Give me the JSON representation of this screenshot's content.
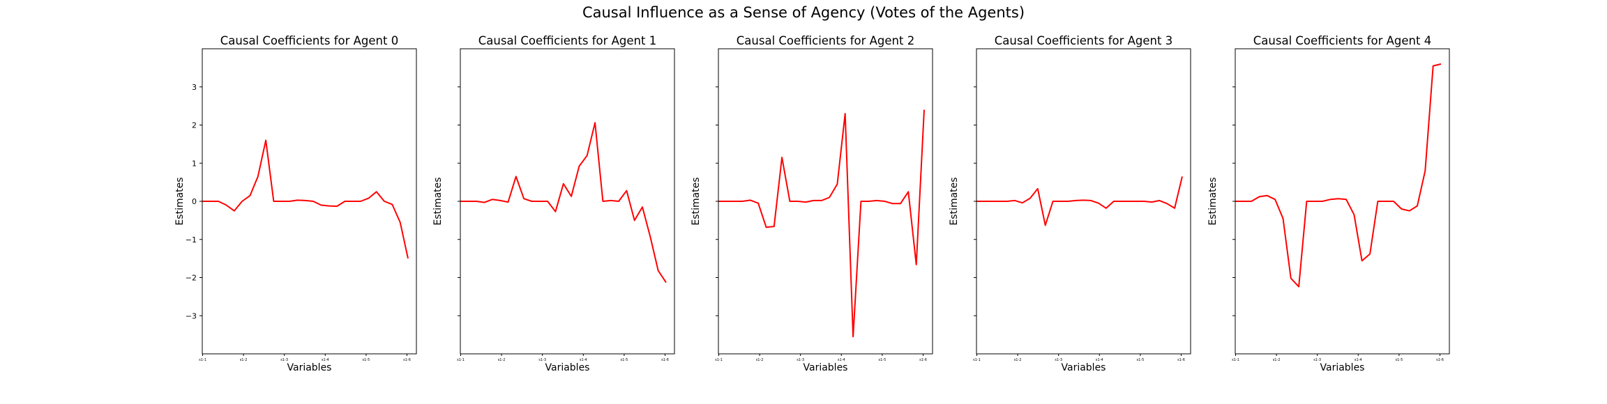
{
  "suptitle": "Causal Influence as a Sense of Agency (Votes of the Agents)",
  "chart_data": [
    {
      "type": "line",
      "title": "Causal Coefficients for Agent 0",
      "xlabel": "Variables",
      "ylabel": "Estimates",
      "ylim": [
        -4,
        4
      ],
      "yticks": [
        -3,
        -2,
        -1,
        0,
        1,
        2,
        3
      ],
      "xticks": [
        "s1-1",
        "s1-2",
        "s1-3",
        "s1-4",
        "s1-5",
        "s1-6"
      ],
      "line_color": "#ff0000",
      "series": [
        {
          "values": [
            0,
            0,
            0,
            -0.1,
            -0.25,
            0,
            0.15,
            0.65,
            1.6,
            0,
            0,
            0,
            0.03,
            0.02,
            0,
            -0.1,
            -0.12,
            -0.13,
            0,
            0,
            0,
            0.08,
            0.25,
            0,
            -0.08,
            -0.55,
            -1.5
          ]
        }
      ]
    },
    {
      "type": "line",
      "title": "Causal Coefficients for Agent 1",
      "xlabel": "Variables",
      "ylabel": "Estimates",
      "ylim": [
        -4,
        4
      ],
      "yticks": [
        -3,
        -2,
        -1,
        0,
        1,
        2,
        3
      ],
      "xticks": [
        "s1-1",
        "s1-2",
        "s1-3",
        "s1-4",
        "s1-5",
        "s1-6"
      ],
      "line_color": "#ff0000",
      "series": [
        {
          "values": [
            0,
            0,
            0,
            -0.03,
            0.05,
            0.02,
            -0.02,
            0.65,
            0.07,
            0,
            0,
            0,
            -0.27,
            0.46,
            0.13,
            0.92,
            1.2,
            2.06,
            0,
            0.02,
            0,
            0.28,
            -0.5,
            -0.15,
            -0.93,
            -1.82,
            -2.13
          ]
        }
      ]
    },
    {
      "type": "line",
      "title": "Causal Coefficients for Agent 2",
      "xlabel": "Variables",
      "ylabel": "Estimates",
      "ylim": [
        -4,
        4
      ],
      "yticks": [
        -3,
        -2,
        -1,
        0,
        1,
        2,
        3
      ],
      "xticks": [
        "s1-1",
        "s1-2",
        "s1-3",
        "s1-4",
        "s1-5",
        "s1-6"
      ],
      "line_color": "#ff0000",
      "series": [
        {
          "values": [
            0,
            0,
            0,
            0,
            0.03,
            -0.05,
            -0.68,
            -0.66,
            1.15,
            0,
            0,
            -0.02,
            0.02,
            0.02,
            0.1,
            0.45,
            2.3,
            -3.55,
            0,
            0,
            0.02,
            0,
            -0.06,
            -0.06,
            0.25,
            -1.66,
            2.4
          ]
        }
      ]
    },
    {
      "type": "line",
      "title": "Causal Coefficients for Agent 3",
      "xlabel": "Variables",
      "ylabel": "Estimates",
      "ylim": [
        -4,
        4
      ],
      "yticks": [
        -3,
        -2,
        -1,
        0,
        1,
        2,
        3
      ],
      "xticks": [
        "s1-1",
        "s1-2",
        "s1-3",
        "s1-4",
        "s1-5",
        "s1-6"
      ],
      "line_color": "#ff0000",
      "series": [
        {
          "values": [
            0,
            0,
            0,
            0,
            0,
            0.02,
            -0.04,
            0.08,
            0.33,
            -0.63,
            0,
            0,
            0,
            0.02,
            0.03,
            0.02,
            -0.05,
            -0.18,
            0,
            0,
            0,
            0,
            0,
            -0.02,
            0.02,
            -0.06,
            -0.18,
            0.65
          ]
        }
      ]
    },
    {
      "type": "line",
      "title": "Causal Coefficients for Agent 4",
      "xlabel": "Variables",
      "ylabel": "Estimates",
      "ylim": [
        -4,
        4
      ],
      "yticks": [
        -3,
        -2,
        -1,
        0,
        1,
        2,
        3
      ],
      "xticks": [
        "s1-1",
        "s1-2",
        "s1-3",
        "s1-4",
        "s1-5",
        "s1-6"
      ],
      "line_color": "#ff0000",
      "series": [
        {
          "values": [
            0,
            0,
            0,
            0.12,
            0.15,
            0.05,
            -0.45,
            -2.02,
            -2.24,
            0,
            0,
            0,
            0.05,
            0.07,
            0.05,
            -0.35,
            -1.56,
            -1.38,
            0,
            0,
            0,
            -0.2,
            -0.25,
            -0.12,
            0.8,
            3.55,
            3.6
          ]
        }
      ]
    }
  ]
}
